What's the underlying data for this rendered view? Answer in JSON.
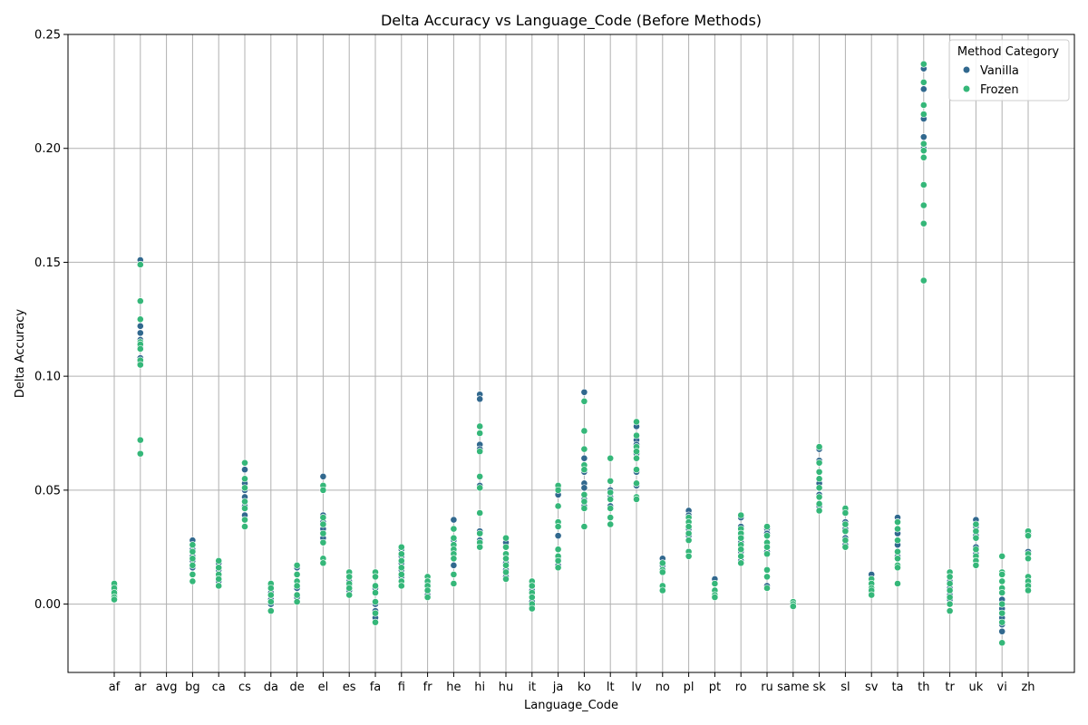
{
  "chart_data": {
    "type": "scatter",
    "title": "Delta Accuracy vs Language_Code (Before Methods)",
    "xlabel": "Language_Code",
    "ylabel": "Delta Accuracy",
    "ylim": [
      -0.03,
      0.25
    ],
    "yticks": [
      0.0,
      0.05,
      0.1,
      0.15,
      0.2,
      0.25
    ],
    "grid": true,
    "categories": [
      "af",
      "ar",
      "avg",
      "bg",
      "ca",
      "cs",
      "da",
      "de",
      "el",
      "es",
      "fa",
      "fi",
      "fr",
      "he",
      "hi",
      "hu",
      "it",
      "ja",
      "ko",
      "lt",
      "lv",
      "no",
      "pl",
      "pt",
      "ro",
      "ru",
      "same",
      "sk",
      "sl",
      "sv",
      "ta",
      "th",
      "tr",
      "uk",
      "vi",
      "zh"
    ],
    "legend": {
      "title": "Method Category",
      "placement": "top-right",
      "entries": [
        {
          "label": "Vanilla",
          "color": "#31688e"
        },
        {
          "label": "Frozen",
          "color": "#35b779"
        }
      ]
    },
    "series": [
      {
        "name": "Vanilla",
        "color": "#31688e",
        "points": {
          "af": [
            0.002,
            0.004,
            0.006,
            0.008
          ],
          "ar": [
            0.151,
            0.149,
            0.122,
            0.119,
            0.116,
            0.113,
            0.108,
            0.106
          ],
          "bg": [
            0.028,
            0.024,
            0.021,
            0.019,
            0.016,
            0.013
          ],
          "ca": [
            0.018,
            0.015,
            0.012,
            0.01
          ],
          "cs": [
            0.059,
            0.053,
            0.05,
            0.047,
            0.043,
            0.039
          ],
          "da": [
            0.008,
            0.005,
            0.002,
            0.0
          ],
          "de": [
            0.016,
            0.013,
            0.01,
            0.007,
            0.003
          ],
          "el": [
            0.056,
            0.052,
            0.039,
            0.036,
            0.033,
            0.029
          ],
          "es": [
            0.013,
            0.01,
            0.008,
            0.006
          ],
          "fa": [
            0.014,
            0.007,
            0.0,
            -0.003,
            -0.006
          ],
          "fi": [
            0.024,
            0.021,
            0.018,
            0.015,
            0.012
          ],
          "fr": [
            0.012,
            0.009,
            0.006,
            0.004
          ],
          "he": [
            0.037,
            0.033,
            0.028,
            0.023,
            0.017
          ],
          "hi": [
            0.092,
            0.09,
            0.07,
            0.068,
            0.052,
            0.032,
            0.028
          ],
          "hu": [
            0.029,
            0.027,
            0.022,
            0.018,
            0.015,
            0.012
          ],
          "it": [
            0.009,
            0.006,
            0.003,
            0.001,
            -0.001
          ],
          "ja": [
            0.051,
            0.048,
            0.03,
            0.024,
            0.02,
            0.017
          ],
          "ko": [
            0.093,
            0.064,
            0.058,
            0.053,
            0.051,
            0.046,
            0.043
          ],
          "lt": [
            0.054,
            0.05,
            0.047,
            0.043,
            0.038
          ],
          "lv": [
            0.078,
            0.072,
            0.07,
            0.066,
            0.058,
            0.052,
            0.047
          ],
          "no": [
            0.02,
            0.017,
            0.014,
            0.008
          ],
          "pl": [
            0.041,
            0.039,
            0.036,
            0.033,
            0.03,
            0.023
          ],
          "pt": [
            0.011,
            0.009,
            0.006,
            0.004
          ],
          "ro": [
            0.038,
            0.034,
            0.03,
            0.027,
            0.023,
            0.019
          ],
          "ru": [
            0.033,
            0.031,
            0.027,
            0.023,
            0.015,
            0.008
          ],
          "same": [
            0.001,
            0.0
          ],
          "sk": [
            0.068,
            0.063,
            0.058,
            0.053,
            0.048,
            0.043
          ],
          "sl": [
            0.041,
            0.036,
            0.033,
            0.029,
            0.026
          ],
          "sv": [
            0.013,
            0.009,
            0.007,
            0.005
          ],
          "ta": [
            0.038,
            0.036,
            0.031,
            0.026,
            0.021,
            0.017
          ],
          "th": [
            0.235,
            0.226,
            0.215,
            0.213,
            0.205,
            0.2
          ],
          "tr": [
            0.01,
            0.007,
            0.004,
            0.002,
            0.0
          ],
          "uk": [
            0.037,
            0.034,
            0.03,
            0.025,
            0.022,
            0.019
          ],
          "vi": [
            0.002,
            -0.002,
            -0.006,
            -0.009,
            -0.012
          ],
          "zh": [
            0.031,
            0.023,
            0.02,
            0.012,
            0.009
          ]
        }
      },
      {
        "name": "Frozen",
        "color": "#35b779",
        "points": {
          "af": [
            0.009,
            0.007,
            0.005,
            0.003,
            0.002
          ],
          "ar": [
            0.149,
            0.133,
            0.125,
            0.115,
            0.114,
            0.112,
            0.107,
            0.105,
            0.072,
            0.066
          ],
          "bg": [
            0.026,
            0.023,
            0.02,
            0.017,
            0.013,
            0.01
          ],
          "ca": [
            0.019,
            0.016,
            0.013,
            0.011,
            0.008
          ],
          "cs": [
            0.062,
            0.055,
            0.051,
            0.045,
            0.042,
            0.037,
            0.034
          ],
          "da": [
            0.009,
            0.007,
            0.004,
            0.001,
            -0.003
          ],
          "de": [
            0.017,
            0.013,
            0.01,
            0.008,
            0.004,
            0.001
          ],
          "el": [
            0.052,
            0.05,
            0.038,
            0.035,
            0.031,
            0.027,
            0.02,
            0.018
          ],
          "es": [
            0.014,
            0.012,
            0.009,
            0.007,
            0.004
          ],
          "fa": [
            0.014,
            0.012,
            0.008,
            0.005,
            0.001,
            -0.004,
            -0.008
          ],
          "fi": [
            0.025,
            0.022,
            0.019,
            0.016,
            0.013,
            0.01,
            0.008
          ],
          "fr": [
            0.012,
            0.01,
            0.008,
            0.006,
            0.003
          ],
          "he": [
            0.033,
            0.029,
            0.026,
            0.024,
            0.022,
            0.02,
            0.013,
            0.009
          ],
          "hi": [
            0.078,
            0.075,
            0.067,
            0.056,
            0.051,
            0.04,
            0.031,
            0.027,
            0.025
          ],
          "hu": [
            0.029,
            0.025,
            0.022,
            0.02,
            0.017,
            0.014,
            0.011
          ],
          "it": [
            0.01,
            0.008,
            0.005,
            0.003,
            0.0,
            -0.002
          ],
          "ja": [
            0.052,
            0.05,
            0.043,
            0.036,
            0.034,
            0.024,
            0.021,
            0.019,
            0.016
          ],
          "ko": [
            0.089,
            0.076,
            0.068,
            0.061,
            0.059,
            0.048,
            0.045,
            0.042,
            0.034
          ],
          "lt": [
            0.064,
            0.054,
            0.049,
            0.046,
            0.042,
            0.038,
            0.035
          ],
          "lv": [
            0.08,
            0.074,
            0.069,
            0.067,
            0.064,
            0.059,
            0.053,
            0.047,
            0.046
          ],
          "no": [
            0.018,
            0.015,
            0.014,
            0.008,
            0.006
          ],
          "pl": [
            0.038,
            0.036,
            0.034,
            0.031,
            0.028,
            0.023,
            0.021
          ],
          "pt": [
            0.009,
            0.006,
            0.004,
            0.003
          ],
          "ro": [
            0.039,
            0.033,
            0.031,
            0.029,
            0.026,
            0.024,
            0.021,
            0.018
          ],
          "ru": [
            0.034,
            0.03,
            0.027,
            0.025,
            0.022,
            0.015,
            0.012,
            0.007
          ],
          "same": [
            0.001,
            0.0,
            -0.001
          ],
          "sk": [
            0.069,
            0.062,
            0.058,
            0.055,
            0.051,
            0.047,
            0.044,
            0.041
          ],
          "sl": [
            0.042,
            0.04,
            0.035,
            0.032,
            0.028,
            0.025
          ],
          "sv": [
            0.011,
            0.009,
            0.007,
            0.006,
            0.004
          ],
          "ta": [
            0.036,
            0.033,
            0.028,
            0.023,
            0.02,
            0.017,
            0.016,
            0.009
          ],
          "th": [
            0.237,
            0.229,
            0.219,
            0.215,
            0.202,
            0.199,
            0.196,
            0.184,
            0.175,
            0.167,
            0.142
          ],
          "tr": [
            0.014,
            0.012,
            0.009,
            0.006,
            0.003,
            0.0,
            -0.003
          ],
          "uk": [
            0.035,
            0.032,
            0.029,
            0.024,
            0.021,
            0.019,
            0.017
          ],
          "vi": [
            0.021,
            0.014,
            0.013,
            0.01,
            0.007,
            0.005,
            0.0,
            -0.004,
            -0.008,
            -0.017
          ],
          "zh": [
            0.032,
            0.03,
            0.022,
            0.02,
            0.012,
            0.01,
            0.008,
            0.006
          ]
        }
      }
    ]
  }
}
